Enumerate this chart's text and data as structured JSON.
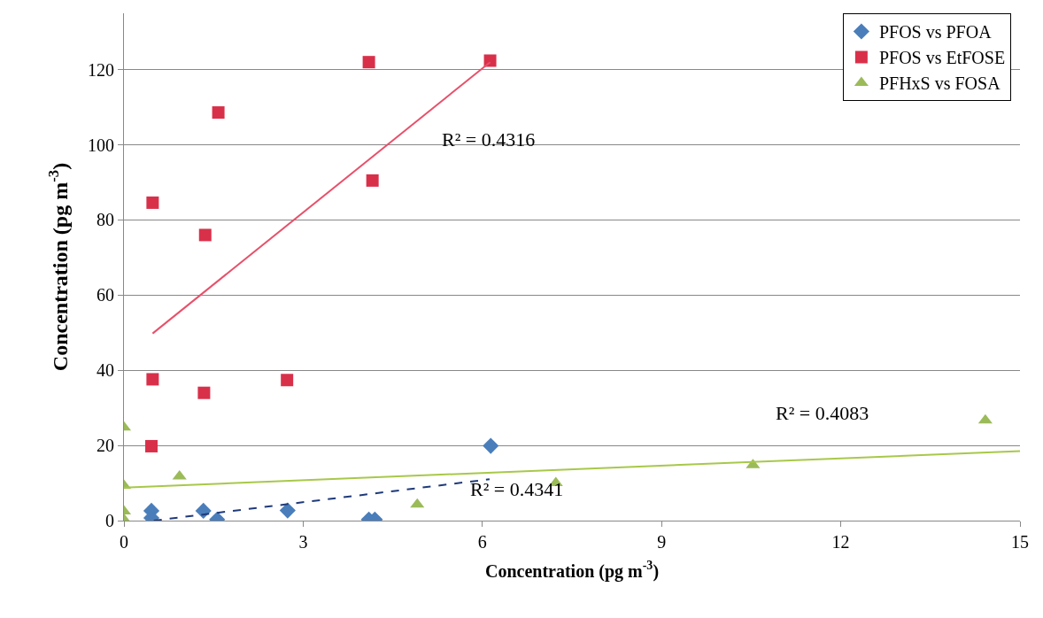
{
  "chart_data": {
    "type": "scatter",
    "xlabel": "Concentration (pg m$^{-3}$)",
    "ylabel": "Concentration (pg m$^{-3}$)",
    "xlim": [
      0,
      15
    ],
    "xticks": [
      0,
      3,
      6,
      9,
      12,
      15
    ],
    "ylim": [
      0,
      135
    ],
    "yticks": [
      0,
      20,
      40,
      60,
      80,
      100,
      120
    ],
    "grid": "y",
    "legend": "top right",
    "series": [
      {
        "name": "PFOS vs PFOA",
        "color": "#4a7ebb",
        "marker": "diamond",
        "x": [
          0.46,
          0.46,
          1.33,
          1.56,
          2.74,
          4.1,
          4.2,
          6.14
        ],
        "values": [
          2.6,
          0.7,
          2.6,
          0.3,
          2.7,
          0.3,
          0.3,
          19.9
        ]
      },
      {
        "name": "PFOS vs EtFOSE",
        "color": "#d9304a",
        "marker": "square",
        "x": [
          1.58,
          0.48,
          1.36,
          4.16,
          0.48,
          1.34,
          2.73,
          0.46,
          4.1,
          6.13
        ],
        "values": [
          108.6,
          84.6,
          76,
          90.5,
          37.6,
          34,
          37.4,
          19.8,
          122,
          122.4
        ]
      },
      {
        "name": "PFHxS vs FOSA",
        "color": "#9bbb59",
        "marker": "triangle",
        "x": [
          0,
          0,
          0,
          0,
          0.93,
          4.91,
          7.23,
          10.53,
          14.42
        ],
        "values": [
          24.8,
          9.3,
          2.5,
          0.3,
          11.8,
          4.3,
          10,
          14.8,
          26.7
        ]
      },
      {
        "type": "line",
        "color": "#1f3a7a",
        "line_style": "dashed",
        "x": [
          0.5,
          6.12
        ],
        "values": [
          0,
          11
        ]
      },
      {
        "type": "line",
        "color": "#e8506a",
        "line_style": "solid",
        "x": [
          0.48,
          6.13
        ],
        "values": [
          49.8,
          122
        ]
      },
      {
        "type": "line",
        "color": "#a8c84a",
        "line_style": "solid",
        "x": [
          0,
          15
        ],
        "values": [
          8.8,
          18.5
        ]
      }
    ],
    "annotations": [
      "R² = 0.4316",
      "R² = 0.4341",
      "R² = 0.4083"
    ]
  }
}
